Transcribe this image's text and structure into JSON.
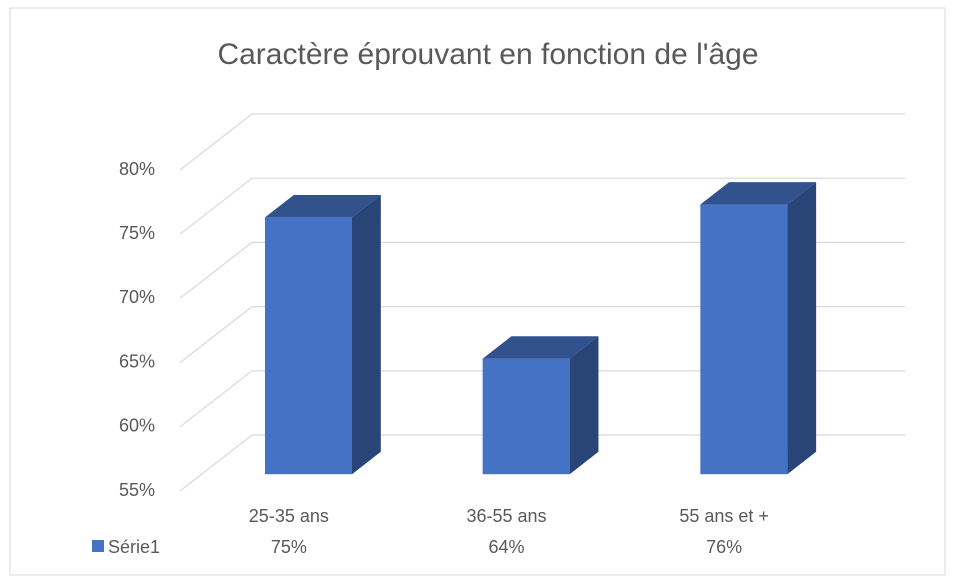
{
  "chart_data": {
    "type": "bar3d",
    "title": "Caractère éprouvant en fonction de l'âge",
    "categories": [
      "25-35 ans",
      "36-55 ans",
      "55 ans et +"
    ],
    "series": [
      {
        "name": "Série1",
        "color": "#4472c4",
        "values": [
          75,
          64,
          76
        ],
        "value_labels": [
          "75%",
          "64%",
          "76%"
        ]
      }
    ],
    "ylim": [
      55,
      80
    ],
    "yticks": [
      {
        "value": 55,
        "label": "55%"
      },
      {
        "value": 60,
        "label": "60%"
      },
      {
        "value": 65,
        "label": "65%"
      },
      {
        "value": 70,
        "label": "70%"
      },
      {
        "value": 75,
        "label": "75%"
      },
      {
        "value": 80,
        "label": "80%"
      }
    ],
    "grid": true
  }
}
